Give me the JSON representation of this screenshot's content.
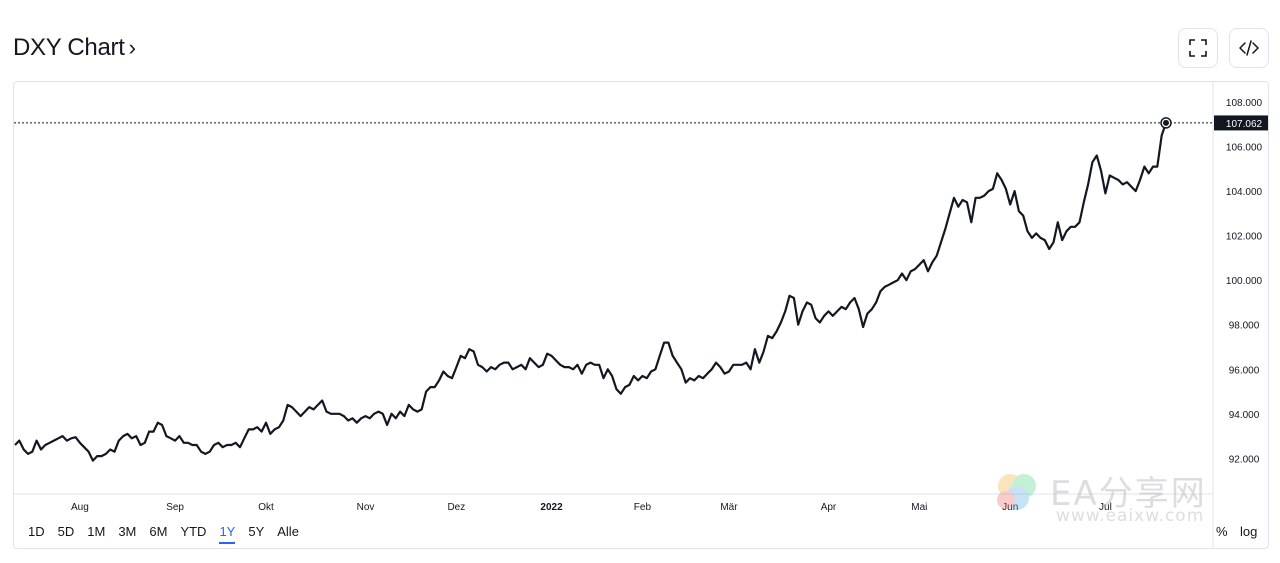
{
  "header": {
    "title": "DXY Chart",
    "chevron": "›",
    "fullscreen_icon": "fullscreen-icon",
    "embed_icon": "code-embed-icon"
  },
  "range_buttons": [
    {
      "label": "1D",
      "active": false
    },
    {
      "label": "5D",
      "active": false
    },
    {
      "label": "1M",
      "active": false
    },
    {
      "label": "3M",
      "active": false
    },
    {
      "label": "6M",
      "active": false
    },
    {
      "label": "YTD",
      "active": false
    },
    {
      "label": "1Y",
      "active": true
    },
    {
      "label": "5Y",
      "active": false
    },
    {
      "label": "Alle",
      "active": false
    }
  ],
  "scale_options": {
    "percent": "%",
    "log": "log"
  },
  "watermark": {
    "text": "EA分享网",
    "url": "www.eaixw.com"
  },
  "colors": {
    "line": "#131722",
    "accent": "#2962ff",
    "grid_border": "#e0e3eb",
    "price_label_bg": "#131722"
  },
  "chart_data": {
    "type": "line",
    "series": [
      {
        "values": [
          92.6,
          92.8,
          92.4,
          92.2,
          92.3,
          92.8,
          92.4,
          92.6,
          92.7,
          92.8,
          92.9,
          93.0,
          92.8,
          92.9,
          92.95,
          92.7,
          92.5,
          92.3,
          91.9,
          92.1,
          92.1,
          92.2,
          92.4,
          92.3,
          92.8,
          93.0,
          93.1,
          92.9,
          93.0,
          92.6,
          92.7,
          93.2,
          93.2,
          93.6,
          93.5,
          93.0,
          92.9,
          92.8,
          93.0,
          92.7,
          92.7,
          92.6,
          92.6,
          92.3,
          92.2,
          92.3,
          92.6,
          92.7,
          92.5,
          92.6,
          92.6,
          92.7,
          92.5,
          92.9,
          93.3,
          93.3,
          93.4,
          93.2,
          93.6,
          93.1,
          93.3,
          93.4,
          93.7,
          94.4,
          94.3,
          94.1,
          93.9,
          94.1,
          94.3,
          94.2,
          94.4,
          94.6,
          94.1,
          94.0,
          94.0,
          94.0,
          93.9,
          93.7,
          93.8,
          93.6,
          93.8,
          93.9,
          93.8,
          94.0,
          94.1,
          94.0,
          93.5,
          94.0,
          93.8,
          94.1,
          93.9,
          94.4,
          94.2,
          94.1,
          94.2,
          95.0,
          95.2,
          95.2,
          95.5,
          95.9,
          95.7,
          95.6,
          96.1,
          96.6,
          96.5,
          96.9,
          96.8,
          96.2,
          96.1,
          95.9,
          96.1,
          96.0,
          96.2,
          96.3,
          96.3,
          96.0,
          96.1,
          96.2,
          96.0,
          96.5,
          96.3,
          96.1,
          96.2,
          96.7,
          96.6,
          96.4,
          96.2,
          96.1,
          96.1,
          96.0,
          96.2,
          95.8,
          96.2,
          96.3,
          96.2,
          96.2,
          95.6,
          96.0,
          95.7,
          95.1,
          94.9,
          95.2,
          95.3,
          95.7,
          95.5,
          95.7,
          95.6,
          95.9,
          96.0,
          96.6,
          97.2,
          97.2,
          96.6,
          96.3,
          96.0,
          95.4,
          95.6,
          95.5,
          95.7,
          95.6,
          95.8,
          96.0,
          96.3,
          96.1,
          95.8,
          95.9,
          96.2,
          96.2,
          96.2,
          96.3,
          96.0,
          96.9,
          96.3,
          96.8,
          97.5,
          97.4,
          97.7,
          98.1,
          98.6,
          99.3,
          99.2,
          98.0,
          98.6,
          99.0,
          98.9,
          98.3,
          98.1,
          98.4,
          98.6,
          98.4,
          98.6,
          98.8,
          98.7,
          99.0,
          99.2,
          98.7,
          97.9,
          98.5,
          98.7,
          99.0,
          99.5,
          99.7,
          99.8,
          99.9,
          100.0,
          100.3,
          100.0,
          100.4,
          100.5,
          100.7,
          100.9,
          100.4,
          100.8,
          101.1,
          101.7,
          102.3,
          103.0,
          103.7,
          103.3,
          103.6,
          103.5,
          102.6,
          103.7,
          103.7,
          103.8,
          104.0,
          104.1,
          104.8,
          104.5,
          104.1,
          103.4,
          104.0,
          103.1,
          102.9,
          102.2,
          101.9,
          102.1,
          101.9,
          101.8,
          101.4,
          101.7,
          102.6,
          101.8,
          102.2,
          102.4,
          102.4,
          102.6,
          103.5,
          104.3,
          105.3,
          105.6,
          104.9,
          103.9,
          104.7,
          104.6,
          104.5,
          104.3,
          104.4,
          104.2,
          104.0,
          104.5,
          105.1,
          104.8,
          105.1,
          105.1,
          106.5,
          107.062
        ]
      }
    ],
    "x_tick_labels": [
      {
        "label": "Aug",
        "index": 15
      },
      {
        "label": "Sep",
        "index": 37
      },
      {
        "label": "Okt",
        "index": 58
      },
      {
        "label": "Nov",
        "index": 81
      },
      {
        "label": "Dez",
        "index": 102
      },
      {
        "label": "2022",
        "index": 124,
        "bold": true
      },
      {
        "label": "Feb",
        "index": 145
      },
      {
        "label": "Mär",
        "index": 165
      },
      {
        "label": "Apr",
        "index": 188
      },
      {
        "label": "Mai",
        "index": 209
      },
      {
        "label": "Jun",
        "index": 230
      },
      {
        "label": "Jul",
        "index": 252
      }
    ],
    "y_ticks": [
      "92.000",
      "94.000",
      "96.000",
      "98.000",
      "100.000",
      "102.000",
      "104.000",
      "106.000",
      "108.000"
    ],
    "ylim": [
      90.4,
      108.9
    ],
    "last_price": "107.062",
    "last_value": 107.062,
    "grid": false
  }
}
